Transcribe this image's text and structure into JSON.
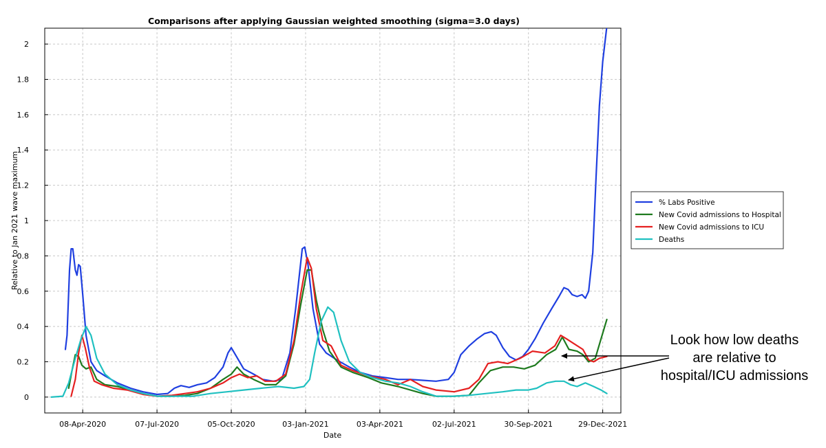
{
  "chart_data": {
    "type": "line",
    "title": "Comparisons after applying Gaussian weighted smoothing (sigma=3.0 days)",
    "xlabel": "Date",
    "ylabel": "Relative to Jan 2021 wave maximum",
    "xlim": [
      "2020-02-22",
      "2022-01-20"
    ],
    "ylim": [
      -0.09,
      2.09
    ],
    "yticks": [
      0,
      0.2,
      0.4,
      0.6,
      0.8,
      1,
      1.2,
      1.4,
      1.6,
      1.8,
      2
    ],
    "ytick_labels": [
      "0",
      "0.2",
      "0.4",
      "0.6",
      "0.8",
      "1",
      "1.2",
      "1.4",
      "1.6",
      "1.8",
      "2"
    ],
    "xticks": [
      "2020-04-08",
      "2020-07-07",
      "2020-10-05",
      "2021-01-03",
      "2021-04-03",
      "2021-07-02",
      "2021-09-30",
      "2021-12-29"
    ],
    "xtick_labels": [
      "08-Apr-2020",
      "07-Jul-2020",
      "05-Oct-2020",
      "03-Jan-2021",
      "03-Apr-2021",
      "02-Jul-2021",
      "30-Sep-2021",
      "29-Dec-2021"
    ],
    "grid": true,
    "legend_position": "right",
    "series": [
      {
        "name": "% Labs Positive",
        "color": "#1f3fe0",
        "points": [
          [
            "2020-03-18",
            0.27
          ],
          [
            "2020-03-20",
            0.35
          ],
          [
            "2020-03-23",
            0.72
          ],
          [
            "2020-03-25",
            0.84
          ],
          [
            "2020-03-27",
            0.84
          ],
          [
            "2020-03-30",
            0.72
          ],
          [
            "2020-04-01",
            0.69
          ],
          [
            "2020-04-03",
            0.75
          ],
          [
            "2020-04-05",
            0.74
          ],
          [
            "2020-04-08",
            0.58
          ],
          [
            "2020-04-12",
            0.35
          ],
          [
            "2020-04-18",
            0.2
          ],
          [
            "2020-04-25",
            0.15
          ],
          [
            "2020-05-05",
            0.12
          ],
          [
            "2020-05-20",
            0.08
          ],
          [
            "2020-06-05",
            0.05
          ],
          [
            "2020-06-20",
            0.03
          ],
          [
            "2020-07-07",
            0.015
          ],
          [
            "2020-07-20",
            0.02
          ],
          [
            "2020-07-28",
            0.05
          ],
          [
            "2020-08-05",
            0.065
          ],
          [
            "2020-08-15",
            0.055
          ],
          [
            "2020-08-25",
            0.07
          ],
          [
            "2020-09-05",
            0.08
          ],
          [
            "2020-09-15",
            0.11
          ],
          [
            "2020-09-25",
            0.17
          ],
          [
            "2020-10-01",
            0.25
          ],
          [
            "2020-10-05",
            0.28
          ],
          [
            "2020-10-10",
            0.24
          ],
          [
            "2020-10-20",
            0.16
          ],
          [
            "2020-11-01",
            0.13
          ],
          [
            "2020-11-12",
            0.1
          ],
          [
            "2020-11-25",
            0.09
          ],
          [
            "2020-12-05",
            0.1
          ],
          [
            "2020-12-15",
            0.25
          ],
          [
            "2020-12-22",
            0.5
          ],
          [
            "2020-12-30",
            0.84
          ],
          [
            "2021-01-02",
            0.85
          ],
          [
            "2021-01-06",
            0.75
          ],
          [
            "2021-01-12",
            0.5
          ],
          [
            "2021-01-20",
            0.3
          ],
          [
            "2021-01-28",
            0.25
          ],
          [
            "2021-02-10",
            0.21
          ],
          [
            "2021-02-25",
            0.17
          ],
          [
            "2021-03-10",
            0.14
          ],
          [
            "2021-03-25",
            0.12
          ],
          [
            "2021-04-10",
            0.11
          ],
          [
            "2021-04-25",
            0.1
          ],
          [
            "2021-05-10",
            0.1
          ],
          [
            "2021-05-25",
            0.095
          ],
          [
            "2021-06-10",
            0.09
          ],
          [
            "2021-06-25",
            0.1
          ],
          [
            "2021-07-02",
            0.14
          ],
          [
            "2021-07-10",
            0.24
          ],
          [
            "2021-07-20",
            0.29
          ],
          [
            "2021-07-30",
            0.33
          ],
          [
            "2021-08-08",
            0.36
          ],
          [
            "2021-08-16",
            0.37
          ],
          [
            "2021-08-22",
            0.35
          ],
          [
            "2021-08-30",
            0.28
          ],
          [
            "2021-09-07",
            0.23
          ],
          [
            "2021-09-15",
            0.21
          ],
          [
            "2021-09-23",
            0.23
          ],
          [
            "2021-09-30",
            0.27
          ],
          [
            "2021-10-08",
            0.33
          ],
          [
            "2021-10-18",
            0.42
          ],
          [
            "2021-10-28",
            0.5
          ],
          [
            "2021-11-06",
            0.57
          ],
          [
            "2021-11-12",
            0.62
          ],
          [
            "2021-11-17",
            0.61
          ],
          [
            "2021-11-22",
            0.58
          ],
          [
            "2021-11-28",
            0.57
          ],
          [
            "2021-12-04",
            0.58
          ],
          [
            "2021-12-08",
            0.56
          ],
          [
            "2021-12-12",
            0.6
          ],
          [
            "2021-12-17",
            0.82
          ],
          [
            "2021-12-21",
            1.25
          ],
          [
            "2021-12-25",
            1.65
          ],
          [
            "2021-12-29",
            1.9
          ],
          [
            "2022-01-03",
            2.1
          ]
        ]
      },
      {
        "name": "New Covid admissions to Hospital",
        "color": "#1e7a1e",
        "points": [
          [
            "2020-03-22",
            0.05
          ],
          [
            "2020-03-26",
            0.15
          ],
          [
            "2020-03-30",
            0.24
          ],
          [
            "2020-04-03",
            0.23
          ],
          [
            "2020-04-07",
            0.18
          ],
          [
            "2020-04-12",
            0.16
          ],
          [
            "2020-04-18",
            0.17
          ],
          [
            "2020-04-25",
            0.1
          ],
          [
            "2020-05-05",
            0.07
          ],
          [
            "2020-05-20",
            0.06
          ],
          [
            "2020-06-05",
            0.04
          ],
          [
            "2020-06-20",
            0.02
          ],
          [
            "2020-07-07",
            0.005
          ],
          [
            "2020-07-25",
            0.005
          ],
          [
            "2020-08-10",
            0.01
          ],
          [
            "2020-08-25",
            0.02
          ],
          [
            "2020-09-10",
            0.05
          ],
          [
            "2020-09-25",
            0.1
          ],
          [
            "2020-10-05",
            0.13
          ],
          [
            "2020-10-12",
            0.17
          ],
          [
            "2020-10-20",
            0.13
          ],
          [
            "2020-11-01",
            0.1
          ],
          [
            "2020-11-15",
            0.07
          ],
          [
            "2020-11-28",
            0.07
          ],
          [
            "2020-12-10",
            0.12
          ],
          [
            "2020-12-20",
            0.3
          ],
          [
            "2020-12-28",
            0.52
          ],
          [
            "2021-01-05",
            0.72
          ],
          [
            "2021-01-10",
            0.72
          ],
          [
            "2021-01-16",
            0.55
          ],
          [
            "2021-01-24",
            0.38
          ],
          [
            "2021-02-01",
            0.26
          ],
          [
            "2021-02-15",
            0.17
          ],
          [
            "2021-03-01",
            0.14
          ],
          [
            "2021-03-20",
            0.11
          ],
          [
            "2021-04-05",
            0.08
          ],
          [
            "2021-04-25",
            0.06
          ],
          [
            "2021-05-10",
            0.04
          ],
          [
            "2021-05-25",
            0.02
          ],
          [
            "2021-06-10",
            0.005
          ],
          [
            "2021-07-02",
            0.005
          ],
          [
            "2021-07-20",
            0.01
          ],
          [
            "2021-08-01",
            0.08
          ],
          [
            "2021-08-15",
            0.15
          ],
          [
            "2021-08-30",
            0.17
          ],
          [
            "2021-09-12",
            0.17
          ],
          [
            "2021-09-25",
            0.16
          ],
          [
            "2021-10-08",
            0.18
          ],
          [
            "2021-10-22",
            0.24
          ],
          [
            "2021-11-02",
            0.27
          ],
          [
            "2021-11-10",
            0.34
          ],
          [
            "2021-11-18",
            0.27
          ],
          [
            "2021-11-28",
            0.26
          ],
          [
            "2021-12-05",
            0.24
          ],
          [
            "2021-12-12",
            0.2
          ],
          [
            "2021-12-20",
            0.22
          ],
          [
            "2021-12-27",
            0.33
          ],
          [
            "2022-01-03",
            0.44
          ]
        ]
      },
      {
        "name": "New Covid admissions to ICU",
        "color": "#e52020",
        "points": [
          [
            "2020-03-25",
            0.005
          ],
          [
            "2020-03-30",
            0.1
          ],
          [
            "2020-04-03",
            0.25
          ],
          [
            "2020-04-07",
            0.35
          ],
          [
            "2020-04-11",
            0.28
          ],
          [
            "2020-04-16",
            0.17
          ],
          [
            "2020-04-22",
            0.09
          ],
          [
            "2020-05-01",
            0.07
          ],
          [
            "2020-05-15",
            0.05
          ],
          [
            "2020-06-01",
            0.04
          ],
          [
            "2020-06-20",
            0.015
          ],
          [
            "2020-07-07",
            0.005
          ],
          [
            "2020-07-25",
            0.01
          ],
          [
            "2020-08-10",
            0.02
          ],
          [
            "2020-08-25",
            0.03
          ],
          [
            "2020-09-10",
            0.05
          ],
          [
            "2020-09-25",
            0.08
          ],
          [
            "2020-10-05",
            0.11
          ],
          [
            "2020-10-15",
            0.13
          ],
          [
            "2020-10-25",
            0.11
          ],
          [
            "2020-11-05",
            0.12
          ],
          [
            "2020-11-15",
            0.09
          ],
          [
            "2020-11-28",
            0.09
          ],
          [
            "2020-12-10",
            0.13
          ],
          [
            "2020-12-20",
            0.32
          ],
          [
            "2020-12-28",
            0.58
          ],
          [
            "2021-01-05",
            0.79
          ],
          [
            "2021-01-10",
            0.73
          ],
          [
            "2021-01-16",
            0.5
          ],
          [
            "2021-01-24",
            0.32
          ],
          [
            "2021-02-03",
            0.29
          ],
          [
            "2021-02-15",
            0.18
          ],
          [
            "2021-03-01",
            0.15
          ],
          [
            "2021-03-20",
            0.12
          ],
          [
            "2021-04-10",
            0.1
          ],
          [
            "2021-04-25",
            0.07
          ],
          [
            "2021-05-10",
            0.1
          ],
          [
            "2021-05-25",
            0.06
          ],
          [
            "2021-06-10",
            0.04
          ],
          [
            "2021-07-02",
            0.03
          ],
          [
            "2021-07-20",
            0.05
          ],
          [
            "2021-08-01",
            0.1
          ],
          [
            "2021-08-12",
            0.19
          ],
          [
            "2021-08-24",
            0.2
          ],
          [
            "2021-09-05",
            0.19
          ],
          [
            "2021-09-20",
            0.22
          ],
          [
            "2021-10-05",
            0.26
          ],
          [
            "2021-10-20",
            0.25
          ],
          [
            "2021-11-01",
            0.29
          ],
          [
            "2021-11-08",
            0.35
          ],
          [
            "2021-11-15",
            0.33
          ],
          [
            "2021-11-25",
            0.3
          ],
          [
            "2021-12-05",
            0.27
          ],
          [
            "2021-12-12",
            0.21
          ],
          [
            "2021-12-18",
            0.2
          ],
          [
            "2021-12-25",
            0.22
          ],
          [
            "2022-01-03",
            0.23
          ]
        ]
      },
      {
        "name": "Deaths",
        "color": "#1fc0c0",
        "points": [
          [
            "2020-03-01",
            0.0
          ],
          [
            "2020-03-15",
            0.005
          ],
          [
            "2020-03-22",
            0.08
          ],
          [
            "2020-03-30",
            0.22
          ],
          [
            "2020-04-06",
            0.33
          ],
          [
            "2020-04-12",
            0.4
          ],
          [
            "2020-04-18",
            0.35
          ],
          [
            "2020-04-25",
            0.22
          ],
          [
            "2020-05-05",
            0.13
          ],
          [
            "2020-05-20",
            0.07
          ],
          [
            "2020-06-05",
            0.04
          ],
          [
            "2020-06-20",
            0.02
          ],
          [
            "2020-07-07",
            0.005
          ],
          [
            "2020-08-01",
            0.005
          ],
          [
            "2020-08-20",
            0.005
          ],
          [
            "2020-09-10",
            0.02
          ],
          [
            "2020-09-30",
            0.03
          ],
          [
            "2020-10-20",
            0.04
          ],
          [
            "2020-11-10",
            0.05
          ],
          [
            "2020-12-01",
            0.06
          ],
          [
            "2020-12-20",
            0.05
          ],
          [
            "2021-01-01",
            0.06
          ],
          [
            "2021-01-08",
            0.1
          ],
          [
            "2021-01-14",
            0.25
          ],
          [
            "2021-01-22",
            0.43
          ],
          [
            "2021-01-30",
            0.51
          ],
          [
            "2021-02-06",
            0.48
          ],
          [
            "2021-02-15",
            0.32
          ],
          [
            "2021-02-25",
            0.2
          ],
          [
            "2021-03-10",
            0.14
          ],
          [
            "2021-03-25",
            0.11
          ],
          [
            "2021-04-10",
            0.09
          ],
          [
            "2021-04-25",
            0.08
          ],
          [
            "2021-05-10",
            0.06
          ],
          [
            "2021-05-25",
            0.03
          ],
          [
            "2021-06-10",
            0.005
          ],
          [
            "2021-07-02",
            0.005
          ],
          [
            "2021-07-20",
            0.01
          ],
          [
            "2021-08-10",
            0.02
          ],
          [
            "2021-08-30",
            0.03
          ],
          [
            "2021-09-15",
            0.04
          ],
          [
            "2021-09-30",
            0.04
          ],
          [
            "2021-10-10",
            0.05
          ],
          [
            "2021-10-22",
            0.08
          ],
          [
            "2021-11-02",
            0.09
          ],
          [
            "2021-11-12",
            0.09
          ],
          [
            "2021-11-20",
            0.07
          ],
          [
            "2021-11-28",
            0.06
          ],
          [
            "2021-12-08",
            0.08
          ],
          [
            "2021-12-18",
            0.06
          ],
          [
            "2021-12-27",
            0.04
          ],
          [
            "2022-01-03",
            0.02
          ]
        ]
      }
    ],
    "annotation": {
      "lines": [
        "Look how low deaths",
        "are relative to",
        "hospital/ICU admissions"
      ]
    }
  }
}
